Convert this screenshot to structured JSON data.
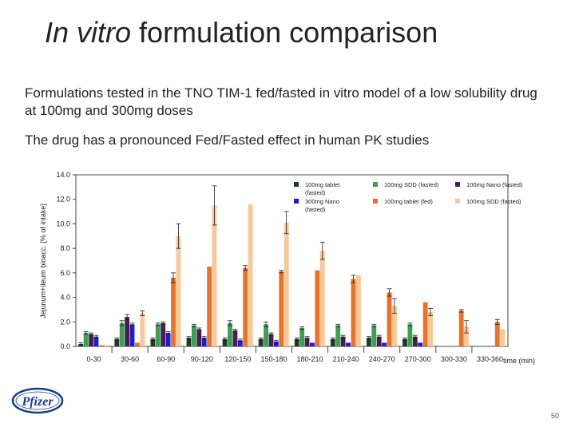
{
  "slide": {
    "title_em": "In vitro",
    "title_rest": " formulation comparison",
    "bullet1": "Formulations tested in the TNO TIM-1 fed/fasted in vitro model of a low solubility drug at 100mg and 300mg doses",
    "bullet2": "The drug has a pronounced Fed/Fasted effect in human PK studies",
    "logo_text": "Pfizer",
    "page_number": "50"
  },
  "chart_data": {
    "type": "bar",
    "ylabel": "Jejunum+ileum  bioacc. [% of intake]",
    "xlabel": "time (min)",
    "ylim": [
      0,
      14
    ],
    "yticks": [
      "0.0",
      "2.0",
      "4.0",
      "6.0",
      "8.0",
      "10.0",
      "12.0",
      "14.0"
    ],
    "categories": [
      "0-30",
      "30-60",
      "60-90",
      "90-120",
      "120-150",
      "150-180",
      "180-210",
      "210-240",
      "240-270",
      "270-300",
      "300-330",
      "330-360"
    ],
    "legend_position": "top-right",
    "series": [
      {
        "name": "100mg tablet (fasted)",
        "color": "#1f3a1f",
        "values": [
          0.2,
          0.6,
          0.6,
          0.7,
          0.6,
          0.6,
          0.6,
          0.6,
          0.7,
          0.6,
          null,
          null
        ],
        "errors": [
          0.1,
          0.1,
          0.1,
          0.1,
          0.1,
          0.1,
          0.1,
          0.1,
          0.1,
          0.1,
          null,
          null
        ]
      },
      {
        "name": "100mg SDD (fasted)",
        "color": "#3aa050",
        "values": [
          1.1,
          1.9,
          1.8,
          1.7,
          1.9,
          1.8,
          1.5,
          1.7,
          1.7,
          1.8,
          null,
          null
        ],
        "errors": [
          0.1,
          0.2,
          0.1,
          0.1,
          0.2,
          0.2,
          0.1,
          0.1,
          0.1,
          0.1,
          null,
          null
        ]
      },
      {
        "name": "100mg Nano (fasted)",
        "color": "#4a1a5a",
        "values": [
          1.0,
          2.4,
          1.9,
          1.4,
          1.3,
          1.0,
          0.7,
          0.8,
          0.8,
          0.8,
          null,
          null
        ],
        "errors": [
          0.1,
          0.2,
          0.1,
          0.1,
          0.1,
          0.1,
          0.1,
          0.1,
          0.1,
          0.1,
          null,
          null
        ]
      },
      {
        "name": "300mg Nano (fasted)",
        "color": "#1c1ccc",
        "values": [
          0.8,
          1.8,
          1.1,
          0.7,
          0.5,
          0.4,
          0.3,
          0.3,
          0.3,
          0.3,
          null,
          null
        ],
        "errors": [
          0.1,
          0.1,
          0.1,
          0.1,
          0.1,
          0.1,
          null,
          null,
          null,
          null,
          null,
          null
        ]
      },
      {
        "name": "100mg tablet (fed)",
        "color": "#f07020",
        "values": [
          0.1,
          0.3,
          5.6,
          6.5,
          6.4,
          6.1,
          6.2,
          5.5,
          4.4,
          3.6,
          2.9,
          2.0
        ],
        "errors": [
          null,
          null,
          0.4,
          null,
          0.2,
          0.1,
          null,
          0.3,
          0.3,
          null,
          0.1,
          0.2
        ]
      },
      {
        "name": "100mg SDD (fasted)",
        "color": "#f8c89a",
        "values": [
          0.1,
          2.7,
          9.0,
          11.5,
          11.6,
          10.1,
          7.8,
          5.8,
          3.3,
          2.8,
          1.6,
          1.4
        ],
        "errors": [
          null,
          0.2,
          1.0,
          1.6,
          null,
          0.9,
          0.7,
          null,
          0.6,
          0.3,
          0.5,
          null
        ]
      }
    ]
  }
}
